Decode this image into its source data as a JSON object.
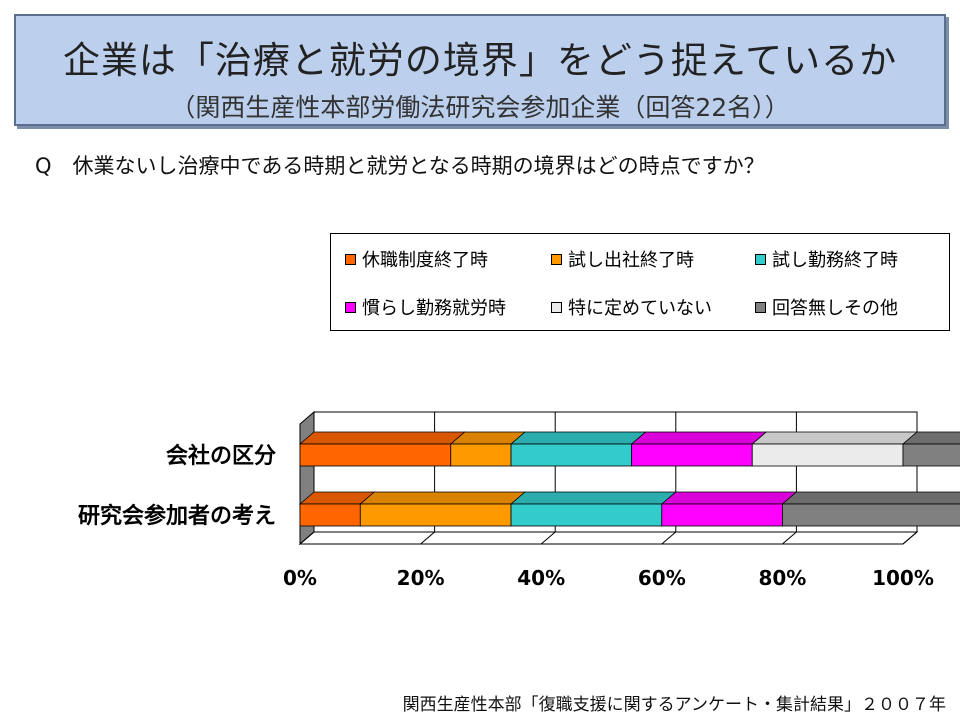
{
  "header": {
    "title": "企業は「治療と就労の境界」をどう捉えているか",
    "subtitle": "（関西生産性本部労働法研究会参加企業（回答22名））"
  },
  "question": "Q　休業ないし治療中である時期と就労となる時期の境界はどの時点ですか？",
  "footer": "関西生産性本部「復職支援に関するアンケート・集計結果」２００７年",
  "chart_data": {
    "type": "bar",
    "orientation": "horizontal",
    "stacked": "percent",
    "three_d": true,
    "categories": [
      "会社の区分",
      "研究会参加者の考え"
    ],
    "series": [
      {
        "name": "休職制度終了時",
        "color": "#ff6600",
        "values": [
          25,
          10
        ]
      },
      {
        "name": "試し出社終了時",
        "color": "#ff9900",
        "values": [
          10,
          25
        ]
      },
      {
        "name": "試し勤務終了時",
        "color": "#33cccc",
        "values": [
          20,
          25
        ]
      },
      {
        "name": "慣らし勤務就労時",
        "color": "#ff00ff",
        "values": [
          20,
          20
        ]
      },
      {
        "name": "特に定めていない",
        "color": "#ebebeb",
        "values": [
          25,
          0
        ]
      },
      {
        "name": "回答無しその他",
        "color": "#808080",
        "values": [
          10,
          30
        ]
      }
    ],
    "xaxis": {
      "ticks": [
        "0%",
        "20%",
        "40%",
        "60%",
        "80%",
        "100%"
      ],
      "range": [
        0,
        100
      ]
    },
    "grid": true,
    "legend_position": "top-right"
  }
}
